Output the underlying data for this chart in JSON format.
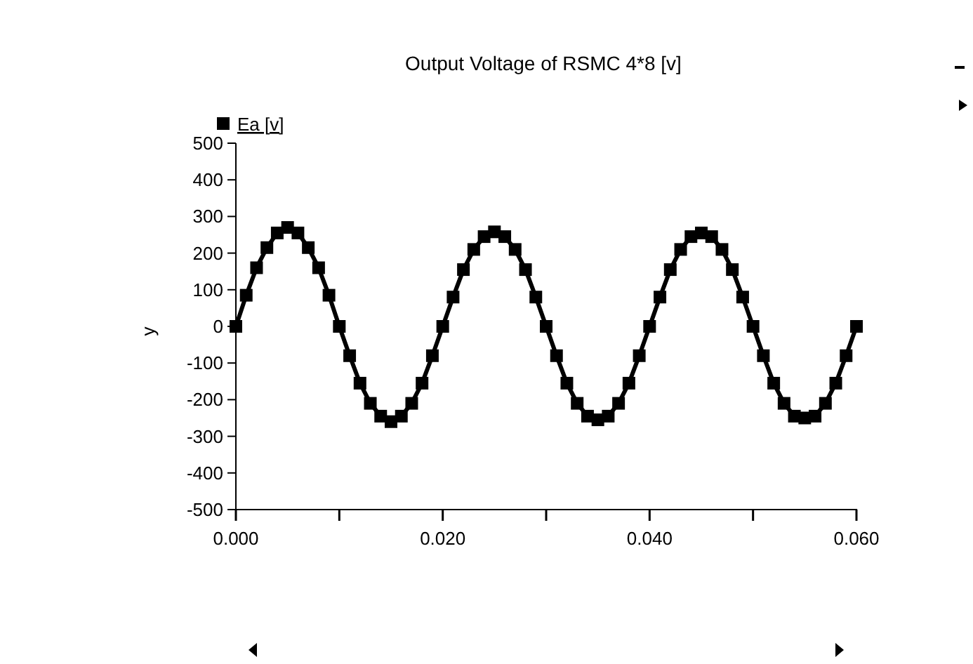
{
  "chart_data": {
    "type": "line",
    "title": "Output Voltage of RSMC 4*8 [v]",
    "ylabel": "y",
    "x": [
      0,
      0.001,
      0.002,
      0.003,
      0.004,
      0.005,
      0.006,
      0.007,
      0.008,
      0.009,
      0.01,
      0.011,
      0.012,
      0.013,
      0.014,
      0.015,
      0.016,
      0.017,
      0.018,
      0.019,
      0.02,
      0.021,
      0.022,
      0.023,
      0.024,
      0.025,
      0.026,
      0.027,
      0.028,
      0.029,
      0.03,
      0.031,
      0.032,
      0.033,
      0.034,
      0.035,
      0.036,
      0.037,
      0.038,
      0.039,
      0.04,
      0.041,
      0.042,
      0.043,
      0.044,
      0.045,
      0.046,
      0.047,
      0.048,
      0.049,
      0.05,
      0.051,
      0.052,
      0.053,
      0.054,
      0.055,
      0.056,
      0.057,
      0.058,
      0.059,
      0.06
    ],
    "series": [
      {
        "name": "Ea [v]",
        "color": "#000000",
        "values": [
          0,
          85,
          160,
          215,
          255,
          270,
          255,
          215,
          160,
          85,
          0,
          -80,
          -155,
          -210,
          -245,
          -260,
          -245,
          -210,
          -155,
          -80,
          0,
          80,
          155,
          210,
          245,
          258,
          245,
          210,
          155,
          80,
          0,
          -80,
          -155,
          -210,
          -245,
          -255,
          -245,
          -210,
          -155,
          -80,
          0,
          80,
          155,
          210,
          245,
          255,
          245,
          210,
          155,
          80,
          0,
          -80,
          -155,
          -210,
          -245,
          -250,
          -245,
          -210,
          -155,
          -80,
          0
        ]
      }
    ],
    "xlim": [
      0,
      0.06
    ],
    "xticks": [
      {
        "value": 0,
        "label": "0.000"
      },
      {
        "value": 0.01,
        "label": null
      },
      {
        "value": 0.02,
        "label": "0.020"
      },
      {
        "value": 0.03,
        "label": null
      },
      {
        "value": 0.04,
        "label": "0.040"
      },
      {
        "value": 0.05,
        "label": null
      },
      {
        "value": 0.06,
        "label": "0.060"
      }
    ],
    "ylim": [
      -500,
      500
    ],
    "yticks": [
      -500,
      -400,
      -300,
      -200,
      -100,
      0,
      100,
      200,
      300,
      400,
      500
    ],
    "grid": false,
    "legend": "top left",
    "marker": "square",
    "line_style": "solid"
  }
}
